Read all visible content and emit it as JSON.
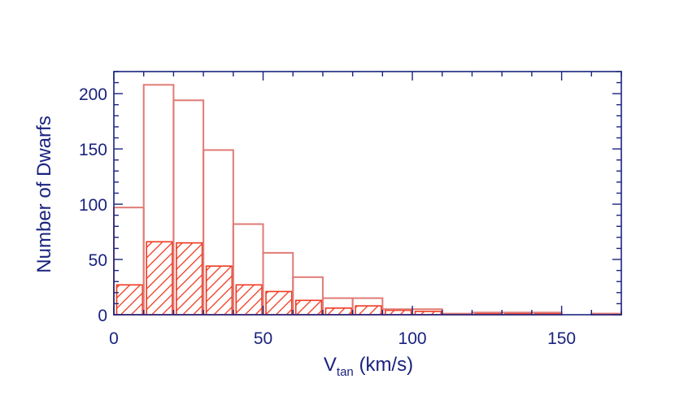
{
  "chart_data": {
    "type": "bar",
    "subtype": "overlaid-histogram",
    "title": "",
    "xlabel": {
      "main": "V",
      "subscript": "tan",
      "suffix": " (km/s)"
    },
    "ylabel": "Number of Dwarfs",
    "xlim": [
      0,
      170
    ],
    "ylim": [
      0,
      220
    ],
    "xticks": [
      0,
      50,
      100,
      150
    ],
    "yticks": [
      0,
      50,
      100,
      150,
      200
    ],
    "bin_width": 10,
    "grid": false,
    "legend": "none",
    "axis_color": "#1a237e",
    "series": [
      {
        "style": "outline",
        "color": "#e07b76",
        "bins": [
          {
            "x0": 0,
            "x1": 10,
            "value": 97
          },
          {
            "x0": 10,
            "x1": 20,
            "value": 208
          },
          {
            "x0": 20,
            "x1": 30,
            "value": 194
          },
          {
            "x0": 30,
            "x1": 40,
            "value": 149
          },
          {
            "x0": 40,
            "x1": 50,
            "value": 82
          },
          {
            "x0": 50,
            "x1": 60,
            "value": 56
          },
          {
            "x0": 60,
            "x1": 70,
            "value": 34
          },
          {
            "x0": 70,
            "x1": 80,
            "value": 15
          },
          {
            "x0": 80,
            "x1": 90,
            "value": 15
          },
          {
            "x0": 90,
            "x1": 100,
            "value": 5
          },
          {
            "x0": 100,
            "x1": 110,
            "value": 5
          },
          {
            "x0": 110,
            "x1": 120,
            "value": 1
          },
          {
            "x0": 120,
            "x1": 130,
            "value": 2
          },
          {
            "x0": 130,
            "x1": 140,
            "value": 2
          },
          {
            "x0": 140,
            "x1": 150,
            "value": 2
          },
          {
            "x0": 150,
            "x1": 160,
            "value": 0
          },
          {
            "x0": 160,
            "x1": 170,
            "value": 1
          }
        ]
      },
      {
        "style": "hatched",
        "color": "#f0391f",
        "bins": [
          {
            "x0": 0,
            "x1": 10,
            "value": 27
          },
          {
            "x0": 10,
            "x1": 20,
            "value": 66
          },
          {
            "x0": 20,
            "x1": 30,
            "value": 65
          },
          {
            "x0": 30,
            "x1": 40,
            "value": 44
          },
          {
            "x0": 40,
            "x1": 50,
            "value": 27
          },
          {
            "x0": 50,
            "x1": 60,
            "value": 21
          },
          {
            "x0": 60,
            "x1": 70,
            "value": 13
          },
          {
            "x0": 70,
            "x1": 80,
            "value": 6
          },
          {
            "x0": 80,
            "x1": 90,
            "value": 8
          },
          {
            "x0": 90,
            "x1": 100,
            "value": 4
          },
          {
            "x0": 100,
            "x1": 110,
            "value": 3
          },
          {
            "x0": 110,
            "x1": 120,
            "value": 0
          },
          {
            "x0": 120,
            "x1": 130,
            "value": 1
          },
          {
            "x0": 130,
            "x1": 140,
            "value": 1
          },
          {
            "x0": 140,
            "x1": 150,
            "value": 1
          },
          {
            "x0": 150,
            "x1": 160,
            "value": 0
          },
          {
            "x0": 160,
            "x1": 170,
            "value": 1
          }
        ]
      }
    ]
  }
}
